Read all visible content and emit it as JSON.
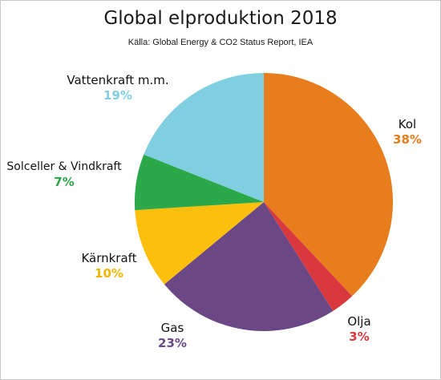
{
  "chart_data": {
    "type": "pie",
    "title": "Global elproduktion 2018",
    "subtitle": "Källa: Global Energy & CO2 Status Report, IEA",
    "slices": [
      {
        "label": "Kol",
        "value": 38,
        "display": "38%",
        "color": "#e87d1e"
      },
      {
        "label": "Olja",
        "value": 3,
        "display": "3%",
        "color": "#d9383e"
      },
      {
        "label": "Gas",
        "value": 23,
        "display": "23%",
        "color": "#6b4885"
      },
      {
        "label": "Kärnkraft",
        "value": 10,
        "display": "10%",
        "color": "#fbbf0c"
      },
      {
        "label": "Solceller & Vindkraft",
        "value": 7,
        "display": "7%",
        "color": "#2aa84a"
      },
      {
        "label": "Vattenkraft m.m.",
        "value": 19,
        "display": "19%",
        "color": "#7fcfe0"
      }
    ]
  }
}
